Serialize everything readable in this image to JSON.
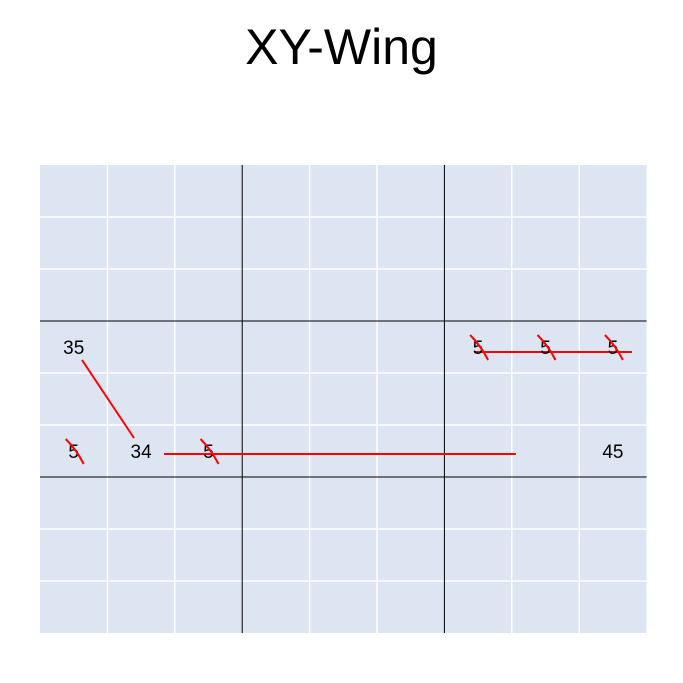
{
  "slide": {
    "title": "XY-Wing"
  },
  "grid": {
    "rows": 9,
    "cols": 9,
    "cell_fill": "#DCE5F1",
    "thin_line_color": "#FFFFFF",
    "box_line_color": "#000000",
    "link_color": "#FF0000",
    "cells": [
      {
        "row": 3,
        "col": 0,
        "text": "35",
        "role": "pivot-wing"
      },
      {
        "row": 5,
        "col": 1,
        "text": "34",
        "role": "pivot"
      },
      {
        "row": 5,
        "col": 8,
        "text": "45",
        "role": "wing"
      },
      {
        "row": 5,
        "col": 0,
        "text": "5",
        "role": "eliminated"
      },
      {
        "row": 5,
        "col": 2,
        "text": "5",
        "role": "eliminated"
      },
      {
        "row": 3,
        "col": 6,
        "text": "5",
        "role": "eliminated"
      },
      {
        "row": 3,
        "col": 7,
        "text": "5",
        "role": "eliminated"
      },
      {
        "row": 3,
        "col": 8,
        "text": "5",
        "role": "eliminated"
      }
    ]
  }
}
